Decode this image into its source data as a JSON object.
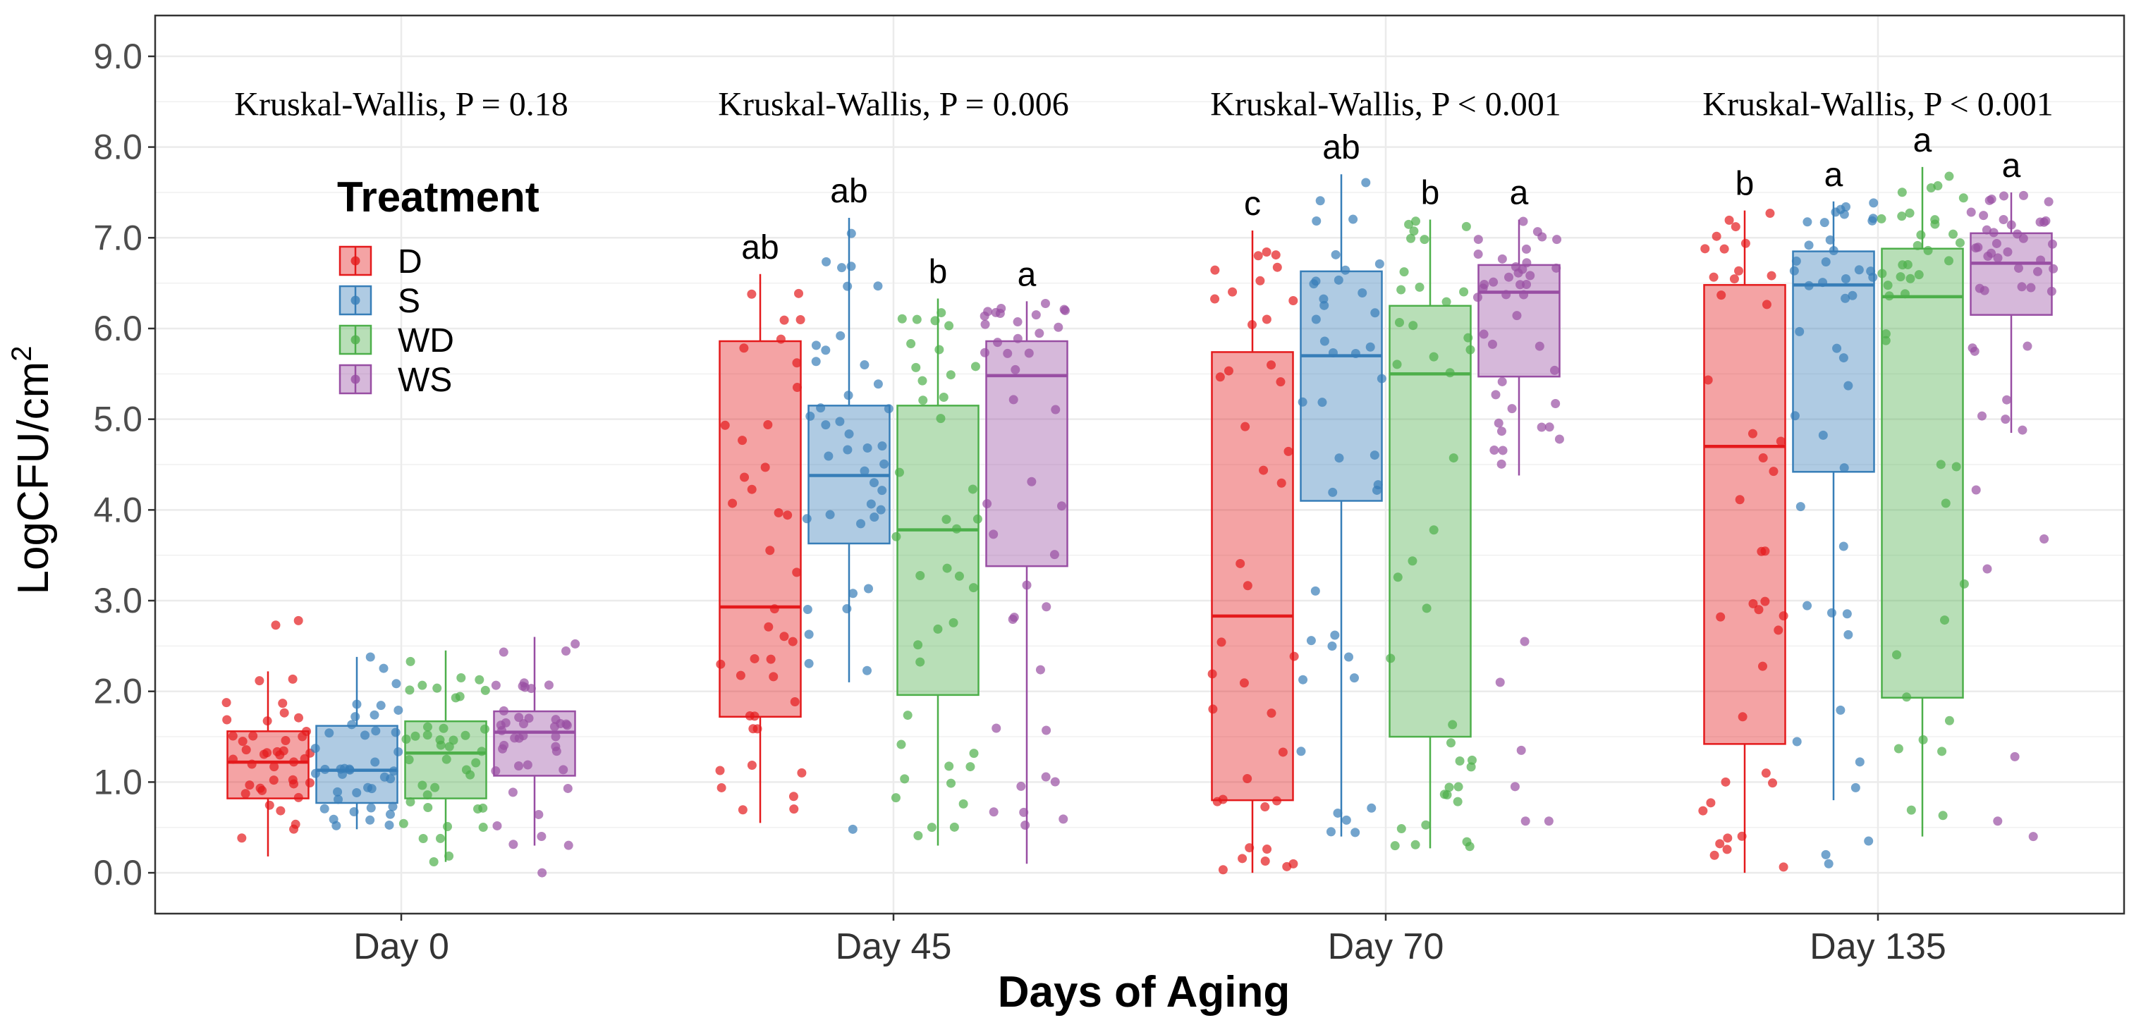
{
  "chart_data": {
    "type": "boxplot",
    "title": "",
    "xlabel": "Days of Aging",
    "ylabel_base": "LogCFU",
    "ylabel_unit": "cm",
    "ylabel_exp": "2",
    "ylim": [
      -0.45,
      9.45
    ],
    "yticks": [
      "0.0",
      "1.0",
      "2.0",
      "3.0",
      "4.0",
      "5.0",
      "6.0",
      "7.0",
      "8.0",
      "9.0"
    ],
    "ytick_values": [
      0,
      1,
      2,
      3,
      4,
      5,
      6,
      7,
      8,
      9
    ],
    "categories": [
      "Day 0",
      "Day 45",
      "Day 70",
      "Day 135"
    ],
    "kruskal_wallis": [
      "Kruskal-Wallis, P = 0.18",
      "Kruskal-Wallis, P = 0.006",
      "Kruskal-Wallis, P < 0.001",
      "Kruskal-Wallis, P < 0.001"
    ],
    "legend": {
      "title": "Treatment",
      "position": "top-left",
      "entries": [
        "D",
        "S",
        "WD",
        "WS"
      ]
    },
    "series": [
      {
        "name": "D",
        "color": "#E41A1C",
        "boxes": [
          {
            "whisker_low": 0.18,
            "q1": 0.82,
            "median": 1.22,
            "q3": 1.56,
            "whisker_high": 2.22,
            "outliers_high": [
              2.73,
              2.78
            ],
            "outliers_low": []
          },
          {
            "whisker_low": 0.55,
            "q1": 1.72,
            "median": 2.93,
            "q3": 5.86,
            "whisker_high": 6.6,
            "outliers_high": [],
            "outliers_low": []
          },
          {
            "whisker_low": 0.0,
            "q1": 0.8,
            "median": 2.83,
            "q3": 5.74,
            "whisker_high": 7.08,
            "outliers_high": [],
            "outliers_low": []
          },
          {
            "whisker_low": 0.0,
            "q1": 1.42,
            "median": 4.7,
            "q3": 6.48,
            "whisker_high": 7.3,
            "outliers_high": [],
            "outliers_low": []
          }
        ],
        "sig_letters": [
          "",
          "ab",
          "c",
          "b"
        ]
      },
      {
        "name": "S",
        "color": "#377EB8",
        "boxes": [
          {
            "whisker_low": 0.48,
            "q1": 0.77,
            "median": 1.13,
            "q3": 1.62,
            "whisker_high": 2.38,
            "outliers_high": [],
            "outliers_low": []
          },
          {
            "whisker_low": 2.1,
            "q1": 3.63,
            "median": 4.38,
            "q3": 5.15,
            "whisker_high": 7.22,
            "outliers_high": [],
            "outliers_low": [
              0.48
            ]
          },
          {
            "whisker_low": 0.4,
            "q1": 4.1,
            "median": 5.7,
            "q3": 6.63,
            "whisker_high": 7.7,
            "outliers_high": [],
            "outliers_low": []
          },
          {
            "whisker_low": 0.8,
            "q1": 4.42,
            "median": 6.48,
            "q3": 6.85,
            "whisker_high": 7.4,
            "outliers_high": [],
            "outliers_low": [
              0.1,
              0.2,
              0.35
            ]
          }
        ],
        "sig_letters": [
          "",
          "ab",
          "ab",
          "a"
        ]
      },
      {
        "name": "WD",
        "color": "#4DAF4A",
        "boxes": [
          {
            "whisker_low": 0.12,
            "q1": 0.82,
            "median": 1.32,
            "q3": 1.67,
            "whisker_high": 2.45,
            "outliers_high": [],
            "outliers_low": []
          },
          {
            "whisker_low": 0.3,
            "q1": 1.96,
            "median": 3.78,
            "q3": 5.15,
            "whisker_high": 6.33,
            "outliers_high": [],
            "outliers_low": []
          },
          {
            "whisker_low": 0.27,
            "q1": 1.5,
            "median": 5.5,
            "q3": 6.25,
            "whisker_high": 7.2,
            "outliers_high": [],
            "outliers_low": []
          },
          {
            "whisker_low": 0.4,
            "q1": 1.93,
            "median": 6.35,
            "q3": 6.88,
            "whisker_high": 7.78,
            "outliers_high": [],
            "outliers_low": []
          }
        ],
        "sig_letters": [
          "",
          "b",
          "b",
          "a"
        ]
      },
      {
        "name": "WS",
        "color": "#984EA3",
        "boxes": [
          {
            "whisker_low": 0.3,
            "q1": 1.07,
            "median": 1.55,
            "q3": 1.78,
            "whisker_high": 2.6,
            "outliers_high": [],
            "outliers_low": [
              0.0
            ]
          },
          {
            "whisker_low": 0.1,
            "q1": 3.38,
            "median": 5.48,
            "q3": 5.86,
            "whisker_high": 6.3,
            "outliers_high": [],
            "outliers_low": []
          },
          {
            "whisker_low": 4.38,
            "q1": 5.47,
            "median": 6.4,
            "q3": 6.7,
            "whisker_high": 7.2,
            "outliers_high": [],
            "outliers_low": [
              0.57,
              0.57,
              0.95,
              1.35,
              2.1,
              2.55
            ]
          },
          {
            "whisker_low": 4.85,
            "q1": 6.15,
            "median": 6.72,
            "q3": 7.05,
            "whisker_high": 7.5,
            "outliers_high": [],
            "outliers_low": [
              0.4,
              0.57,
              1.28,
              3.35,
              3.68,
              4.22
            ]
          }
        ],
        "sig_letters": [
          "",
          "a",
          "a",
          "a"
        ]
      }
    ]
  }
}
